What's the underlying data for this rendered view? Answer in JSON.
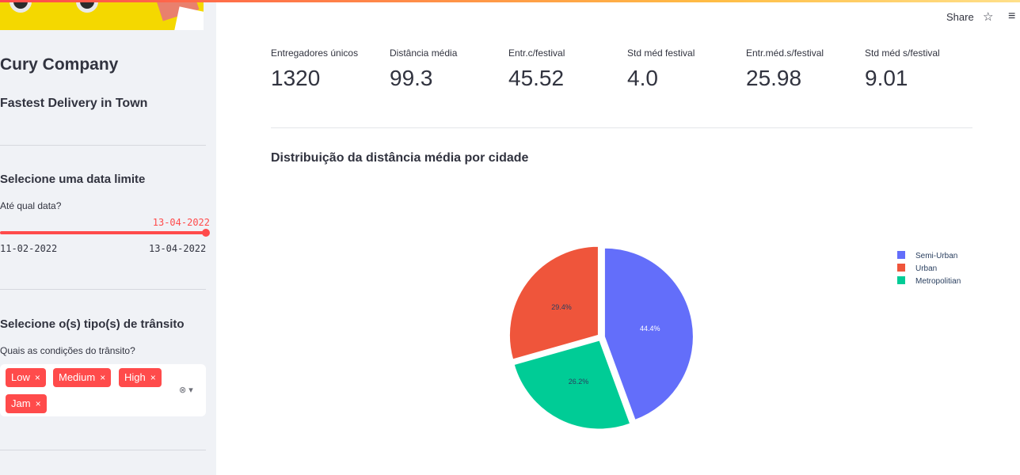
{
  "sidebar": {
    "company_name": "Cury Company",
    "tagline": "Fastest Delivery in Town",
    "date_filter": {
      "title": "Selecione uma data limite",
      "label": "Até qual data?",
      "current_value": "13-04-2022",
      "min": "11-02-2022",
      "max": "13-04-2022",
      "level": 1.0
    },
    "traffic_filter": {
      "title": "Selecione o(s) tipo(s) de trânsito",
      "label": "Quais as condições do trânsito?",
      "tags": [
        "Low",
        "Medium",
        "High",
        "Jam"
      ],
      "remove_glyph": "×",
      "clear_glyph": "⊗",
      "dropdown_glyph": "▾"
    }
  },
  "header": {
    "share_label": "Share",
    "star_glyph": "☆",
    "menu_glyph": "≡"
  },
  "metrics": [
    {
      "label": "Entregadores únicos",
      "value": "1320"
    },
    {
      "label": "Distância média",
      "value": "99.3"
    },
    {
      "label": "Entr.c/festival",
      "value": "45.52"
    },
    {
      "label": "Std méd festival",
      "value": "4.0"
    },
    {
      "label": "Entr.méd.s/festival",
      "value": "25.98"
    },
    {
      "label": "Std méd s/festival",
      "value": "9.01"
    }
  ],
  "chart_title": "Distribuição da distância média por cidade",
  "chart_data": {
    "type": "pie",
    "title": "Distribuição da distância média por cidade",
    "slices": [
      {
        "name": "Semi-Urban",
        "value": 44.4,
        "label": "44.4%",
        "color": "#636efa",
        "pull": 0.04
      },
      {
        "name": "Metropolitian",
        "value": 26.2,
        "label": "26.2%",
        "color": "#00cc96",
        "pull": 0.04
      },
      {
        "name": "Urban",
        "value": 29.4,
        "label": "29.4%",
        "color": "#ef553b",
        "pull": 0.04
      }
    ],
    "legend": [
      "Semi-Urban",
      "Urban",
      "Metropolitian"
    ],
    "legend_placement": "top-right"
  },
  "colors": {
    "accent": "#ff4b4b",
    "sidebar_bg": "#f0f2f6",
    "text": "#31333f"
  }
}
